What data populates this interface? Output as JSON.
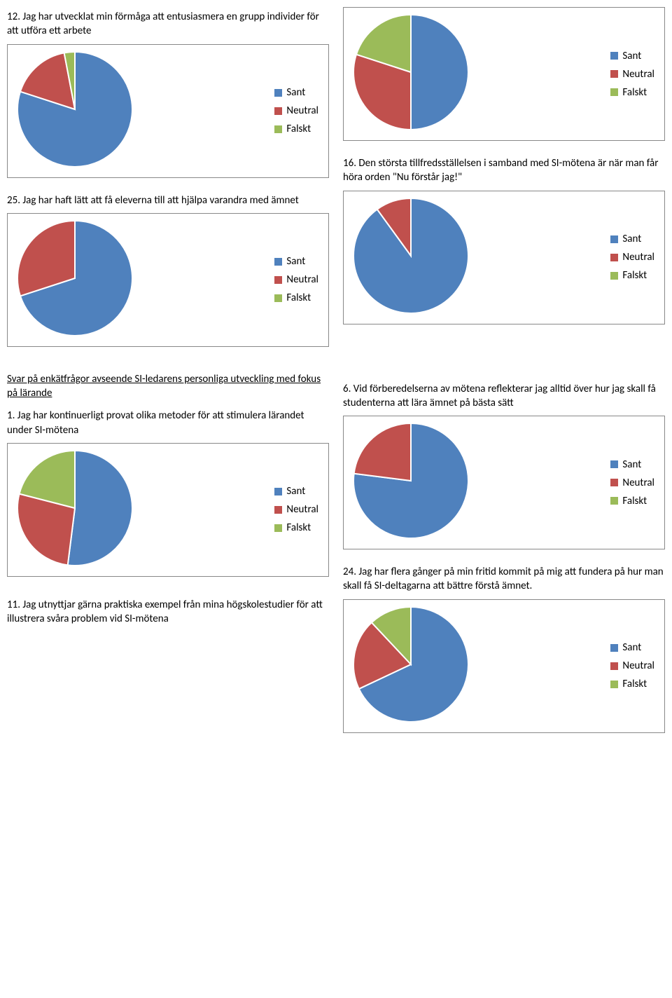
{
  "colors": {
    "sant": "#4f81bd",
    "neutral": "#c0504d",
    "falskt": "#9bbb59",
    "border": "#868686",
    "slice_border": "#ffffff"
  },
  "legend_labels": {
    "sant": "Sant",
    "neutral": "Neutral",
    "falskt": "Falskt"
  },
  "questions": {
    "q12": {
      "text": "12. Jag har utvecklat min förmåga att entusiasmera en grupp individer för att utföra ett arbete",
      "values": [
        80,
        17,
        3
      ]
    },
    "q25": {
      "text": "25. Jag har haft lätt att få eleverna till att hjälpa varandra med ämnet",
      "values": [
        70,
        30,
        0
      ]
    },
    "heading_larande": "Svar på enkätfrågor avseende SI-ledarens personliga utveckling med fokus på lärande",
    "q1": {
      "text": "1. Jag har kontinuerligt provat olika metoder för att stimulera lärandet under SI-mötena",
      "values": [
        52,
        27,
        21
      ]
    },
    "q11": {
      "text": "11. Jag utnyttjar gärna praktiska exempel från mina högskolestudier för att illustrera svåra problem vid SI-mötena"
    },
    "qTop": {
      "values": [
        50,
        30,
        20
      ]
    },
    "q16": {
      "text": "16. Den största tillfredsställelsen i samband med SI-mötena är när man får höra orden \"Nu förstår jag!\"",
      "values": [
        90,
        10,
        0
      ]
    },
    "q6": {
      "text": "6. Vid förberedelserna av mötena reflekterar jag alltid över hur jag skall få studenterna att lära ämnet på bästa sätt",
      "values": [
        77,
        23,
        0
      ]
    },
    "q24": {
      "text": "24. Jag har flera gånger på min fritid kommit på mig att fundera på hur man skall få SI-deltagarna att bättre förstå ämnet.",
      "values": [
        68,
        20,
        12
      ]
    }
  },
  "chart_style": {
    "radius": 82,
    "stroke_width": 2
  }
}
